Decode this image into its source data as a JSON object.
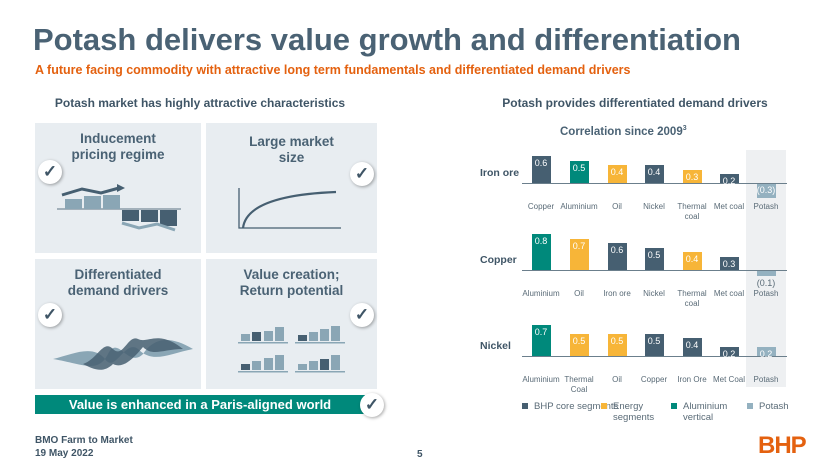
{
  "title": "Potash delivers value growth and differentiation",
  "subtitle": "A future facing commodity with attractive long term fundamentals and differentiated demand drivers",
  "left": {
    "heading": "Potash market has highly attractive characteristics",
    "tiles": [
      {
        "l1": "Inducement",
        "l2": "pricing regime"
      },
      {
        "l1": "Large market",
        "l2": "size"
      },
      {
        "l1": "Differentiated",
        "l2": "demand drivers"
      },
      {
        "l1": "Value creation;",
        "l2": "Return potential"
      }
    ],
    "banner": "Value is enhanced in a Paris-aligned world",
    "check_icon": "✓"
  },
  "right": {
    "heading": "Potash provides differentiated demand drivers",
    "chart_title": "Correlation since 2009",
    "chart_title_sup": "3"
  },
  "colors": {
    "core": "#465f71",
    "energy": "#f7b538",
    "aluminium": "#00897b",
    "potash": "#94b1c0"
  },
  "chart_data": {
    "type": "bar",
    "title": "Correlation since 2009",
    "rows": [
      {
        "label": "Iron ore",
        "categories": [
          "Copper",
          "Aluminium",
          "Oil",
          "Nickel",
          "Thermal coal",
          "Met coal",
          "Potash"
        ],
        "values": [
          0.6,
          0.5,
          0.4,
          0.4,
          0.3,
          0.2,
          -0.3
        ],
        "labels": [
          "0.6",
          "0.5",
          "0.4",
          "0.4",
          "0.3",
          "0.2",
          "(0.3)"
        ],
        "groups": [
          "core",
          "aluminium",
          "energy",
          "core",
          "energy",
          "core",
          "potash"
        ]
      },
      {
        "label": "Copper",
        "categories": [
          "Aluminium",
          "Oil",
          "Iron ore",
          "Nickel",
          "Thermal coal",
          "Met coal",
          "Potash"
        ],
        "values": [
          0.8,
          0.7,
          0.6,
          0.5,
          0.4,
          0.3,
          -0.1
        ],
        "labels": [
          "0.8",
          "0.7",
          "0.6",
          "0.5",
          "0.4",
          "0.3",
          "(0.1)"
        ],
        "groups": [
          "aluminium",
          "energy",
          "core",
          "core",
          "energy",
          "core",
          "potash"
        ]
      },
      {
        "label": "Nickel",
        "categories": [
          "Aluminium",
          "Thermal Coal",
          "Oil",
          "Copper",
          "Iron Ore",
          "Met Coal",
          "Potash"
        ],
        "values": [
          0.7,
          0.5,
          0.5,
          0.5,
          0.4,
          0.2,
          0.2
        ],
        "labels": [
          "0.7",
          "0.5",
          "0.5",
          "0.5",
          "0.4",
          "0.2",
          "0.2"
        ],
        "groups": [
          "aluminium",
          "energy",
          "energy",
          "core",
          "core",
          "core",
          "potash"
        ]
      }
    ],
    "legend": [
      {
        "group": "core",
        "label": "BHP core segments"
      },
      {
        "group": "energy",
        "label": "Energy segments"
      },
      {
        "group": "aluminium",
        "label": "Aluminium vertical"
      },
      {
        "group": "potash",
        "label": "Potash"
      }
    ]
  },
  "footer": {
    "event": "BMO Farm to Market",
    "date": "19 May 2022",
    "page": "5",
    "logo": "BHP"
  }
}
